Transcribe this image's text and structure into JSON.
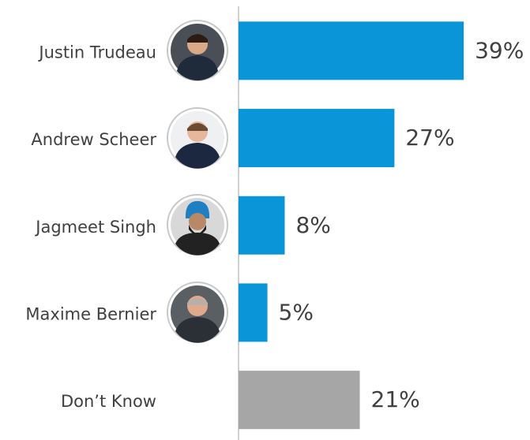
{
  "chart_data": {
    "type": "bar",
    "orientation": "horizontal",
    "categories": [
      "Justin Trudeau",
      "Andrew Scheer",
      "Jagmeet Singh",
      "Maxime Bernier",
      "Don’t Know"
    ],
    "values": [
      39,
      27,
      8,
      5,
      21
    ],
    "value_labels": [
      "39%",
      "27%",
      "8%",
      "5%",
      "21%"
    ],
    "colors": [
      "#0a95d8",
      "#0a95d8",
      "#0a95d8",
      "#0a95d8",
      "#a6a6a6"
    ]
  }
}
